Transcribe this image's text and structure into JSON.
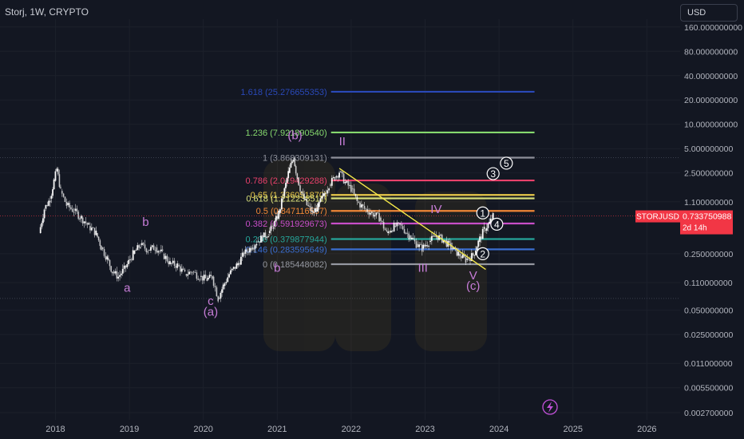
{
  "header": {
    "title": "Storj, 1W, CRYPTO",
    "currency": "USD"
  },
  "price_tag": {
    "symbol": "STORJUSD",
    "price": "0.733750988",
    "countdown": "2d 14h",
    "color": "#f23645"
  },
  "colors": {
    "background": "#131722",
    "candle": "#ffffff",
    "trendline": "#f5e94a",
    "wave_label": "#c77dd8",
    "axis_text": "#b2b5be"
  },
  "chart_data": {
    "type": "candlestick",
    "yscale": "log",
    "ylim": [
      0.0022,
      200
    ],
    "xlim": [
      2017.25,
      2026.45
    ],
    "x_ticks": [
      "2018",
      "2019",
      "2020",
      "2021",
      "2022",
      "2023",
      "2024",
      "2025",
      "2026"
    ],
    "y_ticks": [
      "160.000000000",
      "80.000000000",
      "40.000000000",
      "20.000000000",
      "10.000000000",
      "5.000000000",
      "2.500000000",
      "1.100000000",
      "0.250000000",
      "0.110000000",
      "0.050000000",
      "0.025000000",
      "0.011000000",
      "0.005500000",
      "0.002700000"
    ],
    "price_path": [
      [
        2017.78,
        0.45
      ],
      [
        2017.85,
        0.9
      ],
      [
        2017.93,
        1.2
      ],
      [
        2017.98,
        2.0
      ],
      [
        2018.02,
        2.8
      ],
      [
        2018.07,
        1.5
      ],
      [
        2018.15,
        1.0
      ],
      [
        2018.25,
        0.85
      ],
      [
        2018.35,
        0.7
      ],
      [
        2018.45,
        0.55
      ],
      [
        2018.55,
        0.45
      ],
      [
        2018.62,
        0.3
      ],
      [
        2018.7,
        0.22
      ],
      [
        2018.77,
        0.15
      ],
      [
        2018.85,
        0.13
      ],
      [
        2018.95,
        0.17
      ],
      [
        2019.05,
        0.25
      ],
      [
        2019.15,
        0.32
      ],
      [
        2019.25,
        0.28
      ],
      [
        2019.35,
        0.3
      ],
      [
        2019.45,
        0.25
      ],
      [
        2019.55,
        0.19
      ],
      [
        2019.65,
        0.18
      ],
      [
        2019.75,
        0.14
      ],
      [
        2019.85,
        0.15
      ],
      [
        2019.95,
        0.13
      ],
      [
        2020.05,
        0.12
      ],
      [
        2020.12,
        0.13
      ],
      [
        2020.2,
        0.07
      ],
      [
        2020.27,
        0.1
      ],
      [
        2020.35,
        0.14
      ],
      [
        2020.45,
        0.18
      ],
      [
        2020.55,
        0.25
      ],
      [
        2020.65,
        0.3
      ],
      [
        2020.72,
        0.35
      ],
      [
        2020.8,
        0.4
      ],
      [
        2020.88,
        0.45
      ],
      [
        2020.95,
        0.55
      ],
      [
        2021.02,
        0.8
      ],
      [
        2021.08,
        1.3
      ],
      [
        2021.15,
        2.5
      ],
      [
        2021.22,
        3.9
      ],
      [
        2021.27,
        2.2
      ],
      [
        2021.33,
        1.4
      ],
      [
        2021.4,
        1.0
      ],
      [
        2021.48,
        0.8
      ],
      [
        2021.55,
        0.95
      ],
      [
        2021.62,
        1.3
      ],
      [
        2021.7,
        1.8
      ],
      [
        2021.78,
        2.2
      ],
      [
        2021.84,
        2.6
      ],
      [
        2021.92,
        1.9
      ],
      [
        2022.0,
        1.6
      ],
      [
        2022.08,
        1.1
      ],
      [
        2022.18,
        0.9
      ],
      [
        2022.28,
        0.8
      ],
      [
        2022.38,
        0.7
      ],
      [
        2022.48,
        0.45
      ],
      [
        2022.58,
        0.55
      ],
      [
        2022.68,
        0.55
      ],
      [
        2022.78,
        0.42
      ],
      [
        2022.88,
        0.33
      ],
      [
        2022.96,
        0.29
      ],
      [
        2023.05,
        0.35
      ],
      [
        2023.15,
        0.42
      ],
      [
        2023.25,
        0.37
      ],
      [
        2023.35,
        0.3
      ],
      [
        2023.45,
        0.25
      ],
      [
        2023.55,
        0.21
      ],
      [
        2023.65,
        0.24
      ],
      [
        2023.72,
        0.35
      ],
      [
        2023.8,
        0.5
      ],
      [
        2023.87,
        0.6
      ],
      [
        2023.92,
        0.73
      ]
    ],
    "fib_levels": [
      {
        "ratio": "1.618",
        "value": "25.276655353",
        "label": "1.618 (25.276655353)",
        "color": "#2a49b8"
      },
      {
        "ratio": "1.236",
        "value": "7.921890540",
        "label": "1.236 (7.921890540)",
        "color": "#86d96e"
      },
      {
        "ratio": "1",
        "value": "3.868309131",
        "label": "1 (3.868309131)",
        "color": "#8e909a"
      },
      {
        "ratio": "0.786",
        "value": "2.019429288",
        "label": "0.786 (2.019429288)",
        "color": "#e9416b"
      },
      {
        "ratio": "0.65",
        "value": "1.336051870",
        "label": "0.65 (1.336051870)",
        "color": "#e8c84a"
      },
      {
        "ratio": "0.618",
        "value": "1.212238511",
        "label": "0.618 (1.212238511)",
        "color": "#d8e07a"
      },
      {
        "ratio": "0.5",
        "value": "0.847116557",
        "label": "0.5 (0.847116557)",
        "color": "#f08636"
      },
      {
        "ratio": "0.382",
        "value": "0.591929673",
        "label": "0.382 (0.591929673)",
        "color": "#c84ec8"
      },
      {
        "ratio": "0.236",
        "value": "0.379877944",
        "label": "0.236 (0.379877944)",
        "color": "#26a69a"
      },
      {
        "ratio": "0.146",
        "value": "0.283595649",
        "label": "0.146 (0.283595649)",
        "color": "#3b6ed0"
      },
      {
        "ratio": "0",
        "value": "0.185448082",
        "label": "0 (0.185448082)",
        "color": "#9598a1"
      }
    ],
    "fib_range": [
      2021.08,
      2024.48
    ],
    "wave_labels": [
      {
        "text": "a",
        "x": 2018.97,
        "y": 0.085
      },
      {
        "text": "b",
        "x": 2019.22,
        "y": 0.55
      },
      {
        "text": "c",
        "x": 2020.1,
        "y": 0.058
      },
      {
        "text": "(a)",
        "x": 2020.1,
        "y": 0.043
      },
      {
        "text": "b",
        "x": 2021.0,
        "y": 0.15
      },
      {
        "text": "(b)",
        "x": 2021.24,
        "y": 6.5
      },
      {
        "text": "II",
        "x": 2021.88,
        "y": 5.5
      },
      {
        "text": "III",
        "x": 2022.97,
        "y": 0.15
      },
      {
        "text": "IV",
        "x": 2023.15,
        "y": 0.8
      },
      {
        "text": "V",
        "x": 2023.65,
        "y": 0.12
      },
      {
        "text": "(c)",
        "x": 2023.65,
        "y": 0.09
      }
    ],
    "circled_labels": [
      {
        "text": "1",
        "x": 2023.78,
        "y": 0.8
      },
      {
        "text": "2",
        "x": 2023.78,
        "y": 0.25
      },
      {
        "text": "3",
        "x": 2023.92,
        "y": 2.45
      },
      {
        "text": "4",
        "x": 2023.97,
        "y": 0.58
      },
      {
        "text": "5",
        "x": 2024.1,
        "y": 3.3
      }
    ],
    "trendline": [
      [
        2021.84,
        2.85
      ],
      [
        2023.82,
        0.16
      ]
    ]
  }
}
